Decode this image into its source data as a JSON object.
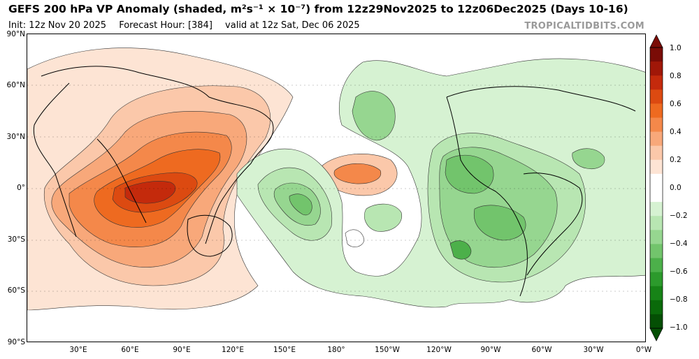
{
  "title_pre": "GEFS 200 hPa VP Anomaly (shaded, ",
  "title_units": "m²s⁻¹ × 10⁻⁷",
  "title_post": ") from 12z29Nov2025 to 12z06Dec2025 (Days 10-16)",
  "init_text": "Init: 12z Nov 20 2025",
  "forecast_hour_text": "Forecast Hour: [384]",
  "valid_text": "valid at 12z Sat, Dec 06 2025",
  "credit": "TROPICALTIDBITS.COM",
  "lat_labels": [
    "90°N",
    "60°N",
    "30°N",
    "0°",
    "30°S",
    "60°S",
    "90°S"
  ],
  "lon_labels": [
    "30°E",
    "60°E",
    "90°E",
    "120°E",
    "150°E",
    "180°",
    "150°W",
    "120°W",
    "90°W",
    "60°W",
    "30°W",
    "0°W"
  ],
  "colorbar": {
    "ticks": [
      "1.0",
      "0.8",
      "0.6",
      "0.4",
      "0.2",
      "0.0",
      "−0.2",
      "−0.4",
      "−0.6",
      "−0.8",
      "−1.0"
    ],
    "colors": [
      "#7a0c06",
      "#a01708",
      "#c42a0c",
      "#dc4a11",
      "#ee6a20",
      "#f4884a",
      "#f8a87a",
      "#fbc8aa",
      "#fde4d4",
      "#ffffff",
      "#ffffff",
      "#d6f2d2",
      "#b8e6b2",
      "#96d690",
      "#72c46c",
      "#4cb04a",
      "#2c9a2c",
      "#178317",
      "#0a6a0a",
      "#044f04"
    ]
  },
  "field": {
    "centers_positive": [
      "India / Indian Ocean",
      "Central Pacific near dateline"
    ],
    "centers_negative": [
      "West Pacific near 165°E",
      "North Pacific",
      "Central America",
      "South America / Atlantic"
    ]
  }
}
